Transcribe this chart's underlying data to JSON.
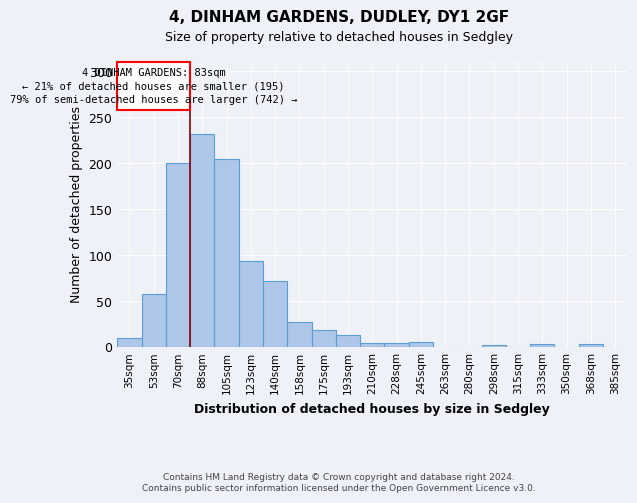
{
  "title": "4, DINHAM GARDENS, DUDLEY, DY1 2GF",
  "subtitle": "Size of property relative to detached houses in Sedgley",
  "xlabel": "Distribution of detached houses by size in Sedgley",
  "ylabel": "Number of detached properties",
  "categories": [
    "35sqm",
    "53sqm",
    "70sqm",
    "88sqm",
    "105sqm",
    "123sqm",
    "140sqm",
    "158sqm",
    "175sqm",
    "193sqm",
    "210sqm",
    "228sqm",
    "245sqm",
    "263sqm",
    "280sqm",
    "298sqm",
    "315sqm",
    "333sqm",
    "350sqm",
    "368sqm",
    "385sqm"
  ],
  "values": [
    10,
    58,
    200,
    232,
    204,
    94,
    72,
    27,
    19,
    13,
    4,
    4,
    5,
    0,
    0,
    2,
    0,
    3,
    0,
    3,
    0
  ],
  "bar_color": "#aec6e8",
  "bar_edge_color": "#5a9fd4",
  "annotation_text_line1": "4 DINHAM GARDENS: 83sqm",
  "annotation_text_line2": "← 21% of detached houses are smaller (195)",
  "annotation_text_line3": "79% of semi-detached houses are larger (742) →",
  "red_line_x": 2.5,
  "ylim": [
    0,
    310
  ],
  "yticks": [
    0,
    50,
    100,
    150,
    200,
    250,
    300
  ],
  "footnote1": "Contains HM Land Registry data © Crown copyright and database right 2024.",
  "footnote2": "Contains public sector information licensed under the Open Government Licence v3.0.",
  "bg_color": "#eef2f8"
}
